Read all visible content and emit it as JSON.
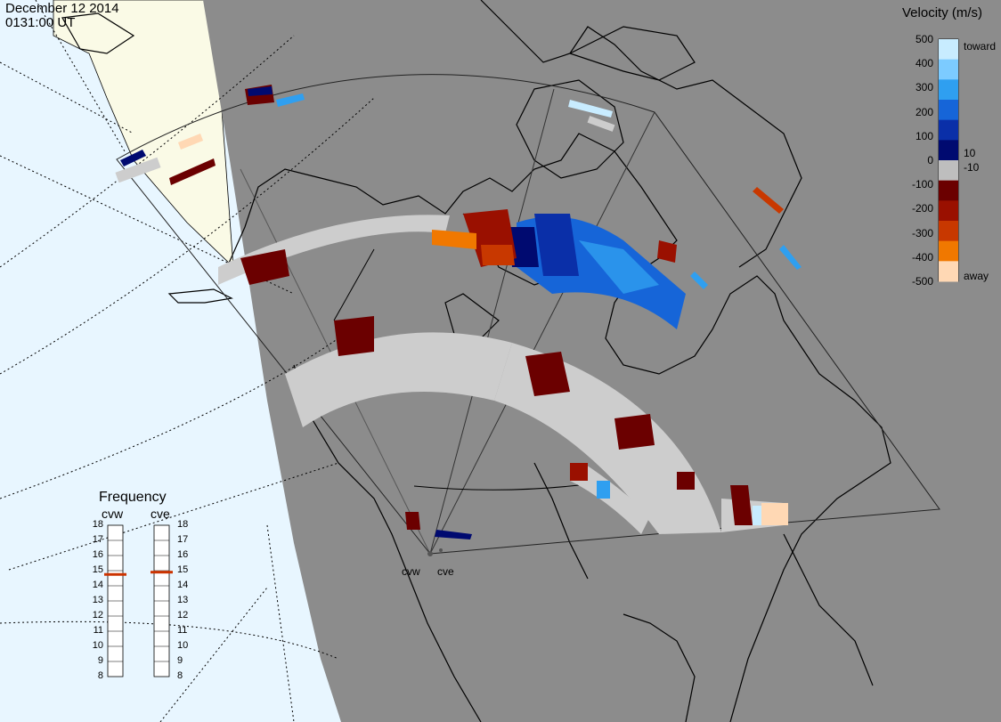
{
  "header": {
    "date": "December 12 2014",
    "time": "0131:00 UT"
  },
  "colorbar": {
    "title": "Velocity (m/s)",
    "ticks": [
      "500",
      "400",
      "300",
      "200",
      "100",
      "0",
      "-100",
      "-200",
      "-300",
      "-400",
      "-500"
    ],
    "tick_values": [
      500,
      400,
      300,
      200,
      100,
      0,
      -100,
      -200,
      -300,
      -400,
      -500
    ],
    "extra_ticks": [
      "10",
      "-10"
    ],
    "end_labels": {
      "top": "toward",
      "bottom": "away"
    },
    "colors": [
      "#c8ecff",
      "#7ccbff",
      "#2f9ff0",
      "#1665d8",
      "#0a2fa8",
      "#000a70",
      "#bebebe",
      "#6b0000",
      "#9a1000",
      "#c83800",
      "#f07800",
      "#ffd8b4"
    ]
  },
  "frequency": {
    "title": "Frequency",
    "radars": [
      {
        "name": "cvw",
        "value": 14.75
      },
      {
        "name": "cve",
        "value": 14.9
      }
    ],
    "ticks": [
      "18",
      "17",
      "16",
      "15",
      "14",
      "13",
      "12",
      "11",
      "10",
      "9",
      "8"
    ],
    "range": [
      8,
      18
    ],
    "marker_color": "#cc3300"
  },
  "radar_sites": [
    "cvw",
    "cve"
  ],
  "map_colors": {
    "ocean": "#e8f6ff",
    "land": "#fafae6",
    "night": "#8c8c8c",
    "ground_scatter": "#cdcdcd"
  }
}
